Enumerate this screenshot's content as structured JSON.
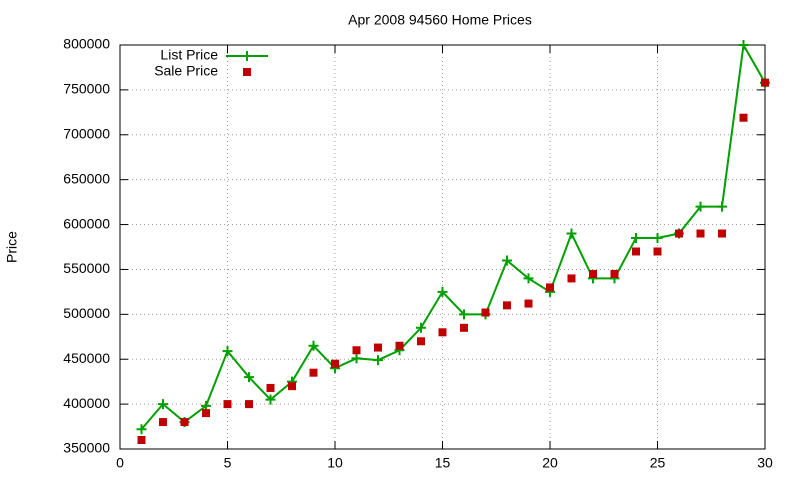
{
  "chart_data": {
    "type": "line",
    "title": "Apr 2008 94560 Home Prices",
    "y_label": "Price",
    "x": [
      1,
      2,
      3,
      4,
      5,
      6,
      7,
      8,
      9,
      10,
      11,
      12,
      13,
      14,
      15,
      16,
      17,
      18,
      19,
      20,
      21,
      22,
      23,
      24,
      25,
      26,
      27,
      28,
      29,
      30
    ],
    "series": [
      {
        "name": "List Price",
        "color": "#00a000",
        "mode": "linespoints",
        "values": [
          372000,
          400000,
          380000,
          398000,
          459000,
          430000,
          405000,
          425000,
          465000,
          440000,
          451000,
          449000,
          460000,
          485000,
          525000,
          500000,
          500000,
          560000,
          540000,
          525000,
          590000,
          540000,
          540000,
          585000,
          585000,
          590000,
          620000,
          620000,
          800000,
          758000
        ]
      },
      {
        "name": "Sale Price",
        "color": "#c00000",
        "mode": "points",
        "values": [
          360000,
          380000,
          380000,
          390000,
          400000,
          400000,
          418000,
          420000,
          435000,
          445000,
          460000,
          463000,
          465000,
          470000,
          480000,
          485000,
          502000,
          510000,
          512000,
          530000,
          540000,
          545000,
          545000,
          570000,
          570000,
          590000,
          590000,
          590000,
          719000,
          758000
        ]
      }
    ],
    "xlim": [
      0,
      30
    ],
    "xticks": [
      0,
      5,
      10,
      15,
      20,
      25,
      30
    ],
    "ylim": [
      350000,
      800000
    ],
    "yticks": [
      350000,
      400000,
      450000,
      500000,
      550000,
      600000,
      650000,
      700000,
      750000,
      800000
    ],
    "grid": true,
    "legend": "top-left"
  }
}
